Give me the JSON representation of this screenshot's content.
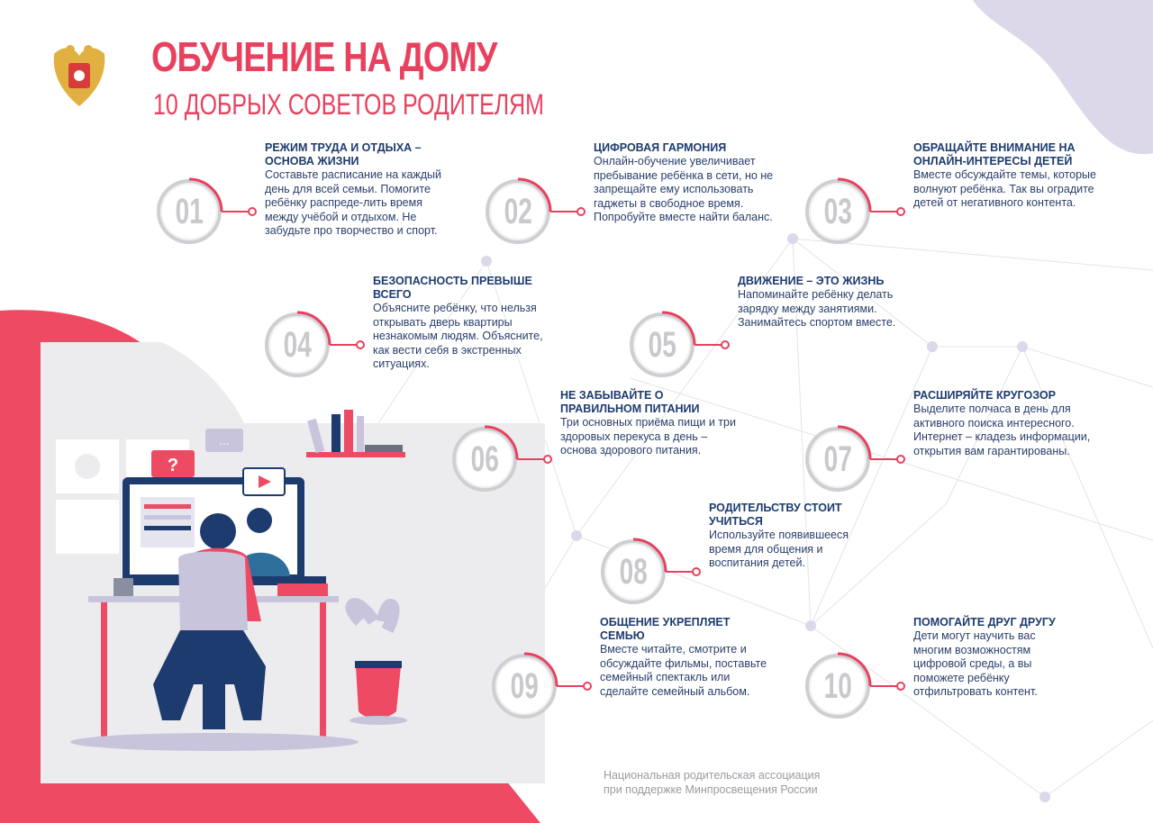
{
  "header": {
    "title": "ОБУЧЕНИЕ НА ДОМУ",
    "subtitle": "10 ДОБРЫХ СОВЕТОВ РОДИТЕЛЯМ",
    "logo": "russian-coat-of-arms-emblem"
  },
  "colors": {
    "accent": "#e8415e",
    "navy": "#1d3b6e",
    "lavender": "#dcd8ea",
    "gray_ring": "#cfcfd3"
  },
  "tips": [
    {
      "number": "01",
      "title": "РЕЖИМ ТРУДА И ОТДЫХА – ОСНОВА ЖИЗНИ",
      "body": "Составьте расписание на каждый день для всей семьи. Помогите ребёнку распреде-лить время между учёбой и отдыхом. Не забудьте про творчество и спорт."
    },
    {
      "number": "02",
      "title": "ЦИФРОВАЯ ГАРМОНИЯ",
      "body": "Онлайн-обучение увеличивает пребывание ребёнка в сети, но не запрещайте ему использовать гаджеты в свободное время. Попробуйте вместе найти баланс."
    },
    {
      "number": "03",
      "title": "ОБРАЩАЙТЕ ВНИМАНИЕ НА ОНЛАЙН-ИНТЕРЕСЫ ДЕТЕЙ",
      "body": "Вместе обсуждайте темы, которые волнуют ребёнка. Так вы оградите детей от негативного контента."
    },
    {
      "number": "04",
      "title": "БЕЗОПАСНОСТЬ ПРЕВЫШЕ ВСЕГО",
      "body": "Объясните ребёнку, что нельзя открывать дверь квартиры незнакомым людям. Объясните, как вести себя в экстренных ситуациях."
    },
    {
      "number": "05",
      "title": "ДВИЖЕНИЕ – ЭТО ЖИЗНЬ",
      "body": "Напоминайте ребёнку делать зарядку между занятиями. Занимайтесь спортом вместе."
    },
    {
      "number": "06",
      "title": "НЕ ЗАБЫВАЙТЕ О ПРАВИЛЬНОМ ПИТАНИИ",
      "body": "Три основных приёма пищи и три здоровых перекуса в день – основа здорового питания."
    },
    {
      "number": "07",
      "title": "РАСШИРЯЙТЕ КРУГОЗОР",
      "body": "Выделите полчаса в день для активного поиска интересного. Интернет – кладезь информации, открытия вам гарантированы."
    },
    {
      "number": "08",
      "title": "РОДИТЕЛЬСТВУ СТОИТ УЧИТЬСЯ",
      "body": "Используйте появившееся время для общения и воспитания детей."
    },
    {
      "number": "09",
      "title": "ОБЩЕНИЕ УКРЕПЛЯЕТ СЕМЬЮ",
      "body": "Вместе читайте, смотрите и обсуждайте фильмы, поставьте семейный спектакль или сделайте семейный альбом."
    },
    {
      "number": "10",
      "title": "ПОМОГАЙТЕ ДРУГ ДРУГУ",
      "body": "Дети могут научить вас многим возможностям цифровой среды, а вы поможете ребёнку отфильтровать контент."
    }
  ],
  "footer": {
    "line1": "Национальная родительская ассоциация",
    "line2": "при поддержке Минпросвещения России"
  }
}
